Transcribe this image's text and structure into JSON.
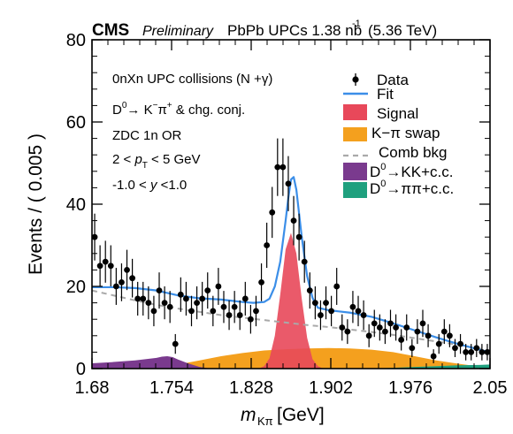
{
  "header": {
    "cms": "CMS",
    "preliminary": "Preliminary",
    "dataset": "PbPb UPCs 1.38 nb",
    "lumi_exp": "-1",
    "energy": "(5.36 TeV)"
  },
  "info": {
    "line1": "0nXn UPC collisions (N +γ)",
    "line2_a": "D",
    "line2_sup0": "0",
    "line2_b": "→ K",
    "line2_sup1": "−",
    "line2_c": "π",
    "line2_sup2": "+",
    "line2_d": " & chg. conj.",
    "line3": "ZDC 1n OR",
    "line4_a": "2 < ",
    "line4_p": "p",
    "line4_sub": "T",
    "line4_b": " < 5 GeV",
    "line5_a": "-1.0 < ",
    "line5_y": "y",
    "line5_b": " <1.0"
  },
  "legend": {
    "data": "Data",
    "fit": "Fit",
    "signal": "Signal",
    "swap": "K−π swap",
    "comb": "Comb bkg",
    "kk_a": "D",
    "kk_sup": "0",
    "kk_b": "→KK+c.c.",
    "pipi_a": "D",
    "pipi_sup": "0",
    "pipi_b": "→ππ+c.c."
  },
  "colors": {
    "fit": "#3b8ee8",
    "signal": "#e8485a",
    "swap": "#f4a01e",
    "comb": "#a9a9a9",
    "kk": "#7a3a8e",
    "pipi": "#1fa07e",
    "data": "#000000"
  },
  "chart_data": {
    "type": "scatter",
    "xlabel_m": "m",
    "xlabel_sub": "Kπ",
    "xlabel_unit": " [GeV]",
    "ylabel": "Events / ( 0.005 )",
    "xlim": [
      1.68,
      2.05
    ],
    "ylim": [
      0,
      80
    ],
    "xticks": [
      "1.68",
      "1.754",
      "1.828",
      "1.902",
      "1.976",
      "2.05"
    ],
    "yticks": [
      "0",
      "20",
      "40",
      "60",
      "80"
    ],
    "series": [
      {
        "name": "Data",
        "x": [
          1.6825,
          1.6875,
          1.6925,
          1.6975,
          1.7025,
          1.7075,
          1.7125,
          1.7175,
          1.7225,
          1.7275,
          1.7325,
          1.7375,
          1.7425,
          1.7475,
          1.7525,
          1.7575,
          1.7625,
          1.7675,
          1.7725,
          1.7775,
          1.7825,
          1.7875,
          1.7925,
          1.7975,
          1.8025,
          1.8075,
          1.8125,
          1.8175,
          1.8225,
          1.8275,
          1.8325,
          1.8375,
          1.8425,
          1.8475,
          1.8525,
          1.8575,
          1.8625,
          1.8675,
          1.8725,
          1.8775,
          1.8825,
          1.8875,
          1.8925,
          1.8975,
          1.9025,
          1.9075,
          1.9125,
          1.9175,
          1.9225,
          1.9275,
          1.9325,
          1.9375,
          1.9425,
          1.9475,
          1.9525,
          1.9575,
          1.9625,
          1.9675,
          1.9725,
          1.9775,
          1.9825,
          1.9875,
          1.9925,
          1.9975,
          2.0025,
          2.0075,
          2.0125,
          2.0175,
          2.0225,
          2.0275,
          2.0325,
          2.0375,
          2.0425,
          2.0475
        ],
        "y": [
          32,
          25,
          26,
          25,
          20,
          21,
          24,
          22,
          17,
          17,
          16,
          14,
          19,
          16,
          15,
          6,
          18,
          17,
          14,
          16,
          17,
          19,
          14,
          20,
          15,
          13,
          15,
          13,
          17,
          12,
          14,
          21,
          30,
          38,
          49,
          49,
          45,
          36,
          32,
          26,
          19,
          16,
          13,
          16,
          14,
          20,
          10,
          9,
          15,
          14,
          13,
          8,
          11,
          10,
          9,
          11,
          10,
          7,
          10,
          5,
          9,
          11,
          8,
          3,
          6,
          9,
          8,
          5,
          6,
          4,
          4,
          5,
          4,
          4
        ],
        "yerr": [
          5.7,
          5.0,
          5.1,
          5.0,
          4.5,
          4.6,
          4.9,
          4.7,
          4.1,
          4.1,
          4.0,
          3.7,
          4.4,
          4.0,
          3.9,
          2.4,
          4.2,
          4.1,
          3.7,
          4.0,
          4.1,
          4.4,
          3.7,
          4.5,
          3.9,
          3.6,
          3.9,
          3.6,
          4.1,
          3.5,
          3.7,
          4.6,
          5.5,
          6.2,
          7.0,
          7.0,
          6.7,
          6.0,
          5.7,
          5.1,
          4.4,
          4.0,
          3.6,
          4.0,
          3.7,
          4.5,
          3.2,
          3.0,
          3.9,
          3.7,
          3.6,
          2.8,
          3.3,
          3.2,
          3.0,
          3.3,
          3.2,
          2.6,
          3.2,
          2.2,
          3.0,
          3.3,
          2.8,
          1.7,
          2.4,
          3.0,
          2.8,
          2.2,
          2.4,
          2.0,
          2.0,
          2.2,
          2.0,
          2.0
        ]
      },
      {
        "name": "Fit",
        "x": [
          1.68,
          1.7,
          1.72,
          1.74,
          1.76,
          1.78,
          1.8,
          1.81,
          1.82,
          1.83,
          1.84,
          1.845,
          1.85,
          1.855,
          1.86,
          1.8625,
          1.865,
          1.8675,
          1.87,
          1.875,
          1.88,
          1.885,
          1.89,
          1.9,
          1.92,
          1.94,
          1.96,
          1.98,
          2.0,
          2.02,
          2.04,
          2.05
        ],
        "y": [
          19.8,
          19.8,
          19.6,
          19.0,
          17.8,
          17.1,
          16.8,
          16.5,
          16.2,
          16.0,
          16.2,
          17.0,
          20.0,
          26.0,
          36.0,
          41.5,
          46.0,
          46.6,
          43.5,
          32.0,
          22.5,
          17.2,
          14.8,
          14.2,
          13.6,
          12.6,
          11.0,
          9.3,
          7.6,
          6.0,
          4.6,
          4.0
        ]
      },
      {
        "name": "Signal",
        "x": [
          1.835,
          1.84,
          1.845,
          1.85,
          1.855,
          1.86,
          1.865,
          1.87,
          1.875,
          1.88,
          1.885,
          1.89,
          1.895
        ],
        "y": [
          0.0,
          0.6,
          2.5,
          8.0,
          18.0,
          29.0,
          33.0,
          28.0,
          17.0,
          7.5,
          2.3,
          0.6,
          0.0
        ]
      },
      {
        "name": "K−π swap",
        "x": [
          1.74,
          1.76,
          1.78,
          1.8,
          1.82,
          1.84,
          1.86,
          1.88,
          1.9,
          1.92,
          1.94,
          1.96,
          1.98,
          2.0,
          2.02,
          2.04,
          2.05
        ],
        "y": [
          0.0,
          1.0,
          2.0,
          3.0,
          3.8,
          4.4,
          4.7,
          4.9,
          5.0,
          4.9,
          4.6,
          4.0,
          3.0,
          2.0,
          1.2,
          0.5,
          0.2
        ]
      },
      {
        "name": "Comb bkg",
        "x": [
          1.68,
          1.7,
          1.72,
          1.74,
          1.76,
          1.78,
          1.8,
          1.82,
          1.84,
          1.86,
          1.88,
          1.9,
          1.92,
          1.94,
          1.96,
          1.98,
          2.0,
          2.02,
          2.04,
          2.05
        ],
        "y": [
          19.0,
          17.8,
          16.6,
          15.5,
          14.6,
          13.8,
          13.0,
          12.4,
          11.8,
          11.2,
          10.6,
          10.1,
          9.5,
          8.9,
          8.2,
          7.4,
          6.6,
          5.8,
          4.9,
          4.4
        ]
      },
      {
        "name": "D0→KK+c.c.",
        "x": [
          1.68,
          1.7,
          1.72,
          1.74,
          1.745,
          1.75,
          1.755,
          1.76,
          1.77,
          1.78,
          1.79
        ],
        "y": [
          1.3,
          1.6,
          2.0,
          2.6,
          2.9,
          3.0,
          2.8,
          2.2,
          1.2,
          0.4,
          0.0
        ]
      },
      {
        "name": "D0→ππ+c.c.",
        "x": [
          1.94,
          1.96,
          1.98,
          2.0,
          2.02,
          2.04,
          2.05
        ],
        "y": [
          0.0,
          0.2,
          0.4,
          0.6,
          0.8,
          0.9,
          1.0
        ]
      }
    ]
  }
}
